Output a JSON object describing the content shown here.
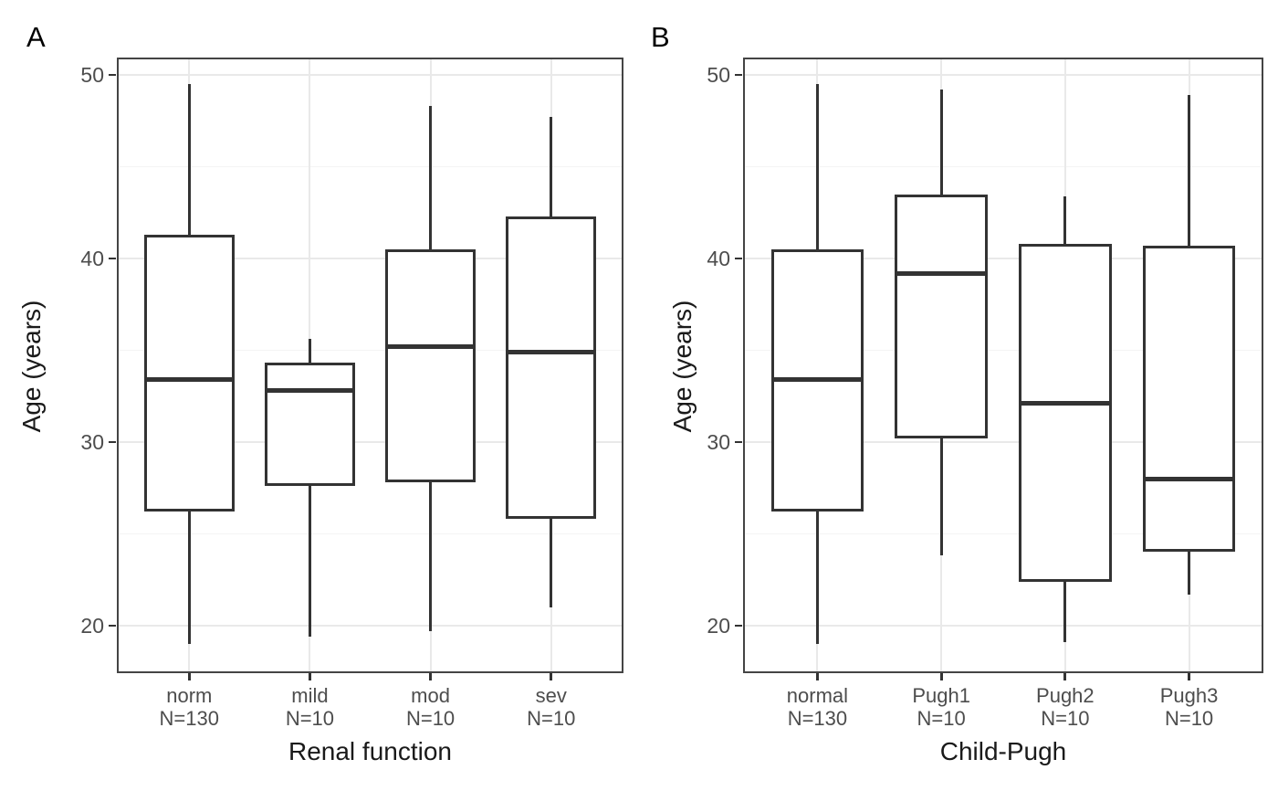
{
  "style": {
    "colors": {
      "background": "#ffffff",
      "panel-border": "#444444",
      "box-stroke": "#333333",
      "grid-major": "#e9e9e9",
      "grid-minor": "#f4f4f4",
      "tick-mark": "#333333",
      "tick-text": "#4d4d4d",
      "title-text": "#1a1a1a",
      "panel-letter": "#000000"
    }
  },
  "chart_data": [
    {
      "type": "boxplot",
      "panel_label": "A",
      "xlabel": "Renal function",
      "ylabel": "Age (years)",
      "ylim": [
        17.4,
        50.95
      ],
      "y_ticks": [
        20,
        30,
        40,
        50
      ],
      "y_minor_ticks": [
        25,
        35,
        45
      ],
      "grid": true,
      "legend": false,
      "categories": [
        "norm",
        "mild",
        "mod",
        "sev"
      ],
      "n_labels": [
        "N=130",
        "N=10",
        "N=10",
        "N=10"
      ],
      "boxes": [
        {
          "whisker_low": 19.0,
          "q1": 26.2,
          "median": 33.4,
          "q3": 41.3,
          "whisker_high": 49.5
        },
        {
          "whisker_low": 19.4,
          "q1": 27.6,
          "median": 32.8,
          "q3": 34.3,
          "whisker_high": 35.6
        },
        {
          "whisker_low": 19.7,
          "q1": 27.8,
          "median": 35.2,
          "q3": 40.5,
          "whisker_high": 48.3
        },
        {
          "whisker_low": 21.0,
          "q1": 25.8,
          "median": 34.9,
          "q3": 42.3,
          "whisker_high": 47.7
        }
      ]
    },
    {
      "type": "boxplot",
      "panel_label": "B",
      "xlabel": "Child-Pugh",
      "ylabel": "Age (years)",
      "ylim": [
        17.4,
        50.95
      ],
      "y_ticks": [
        20,
        30,
        40,
        50
      ],
      "y_minor_ticks": [
        25,
        35,
        45
      ],
      "grid": true,
      "legend": false,
      "categories": [
        "normal",
        "Pugh1",
        "Pugh2",
        "Pugh3"
      ],
      "n_labels": [
        "N=130",
        "N=10",
        "N=10",
        "N=10"
      ],
      "boxes": [
        {
          "whisker_low": 19.0,
          "q1": 26.2,
          "median": 33.4,
          "q3": 40.5,
          "whisker_high": 49.5
        },
        {
          "whisker_low": 23.8,
          "q1": 30.2,
          "median": 39.2,
          "q3": 43.5,
          "whisker_high": 49.2
        },
        {
          "whisker_low": 19.1,
          "q1": 22.4,
          "median": 32.1,
          "q3": 40.8,
          "whisker_high": 43.4
        },
        {
          "whisker_low": 21.7,
          "q1": 24.0,
          "median": 28.0,
          "q3": 40.7,
          "whisker_high": 48.9
        }
      ]
    }
  ]
}
